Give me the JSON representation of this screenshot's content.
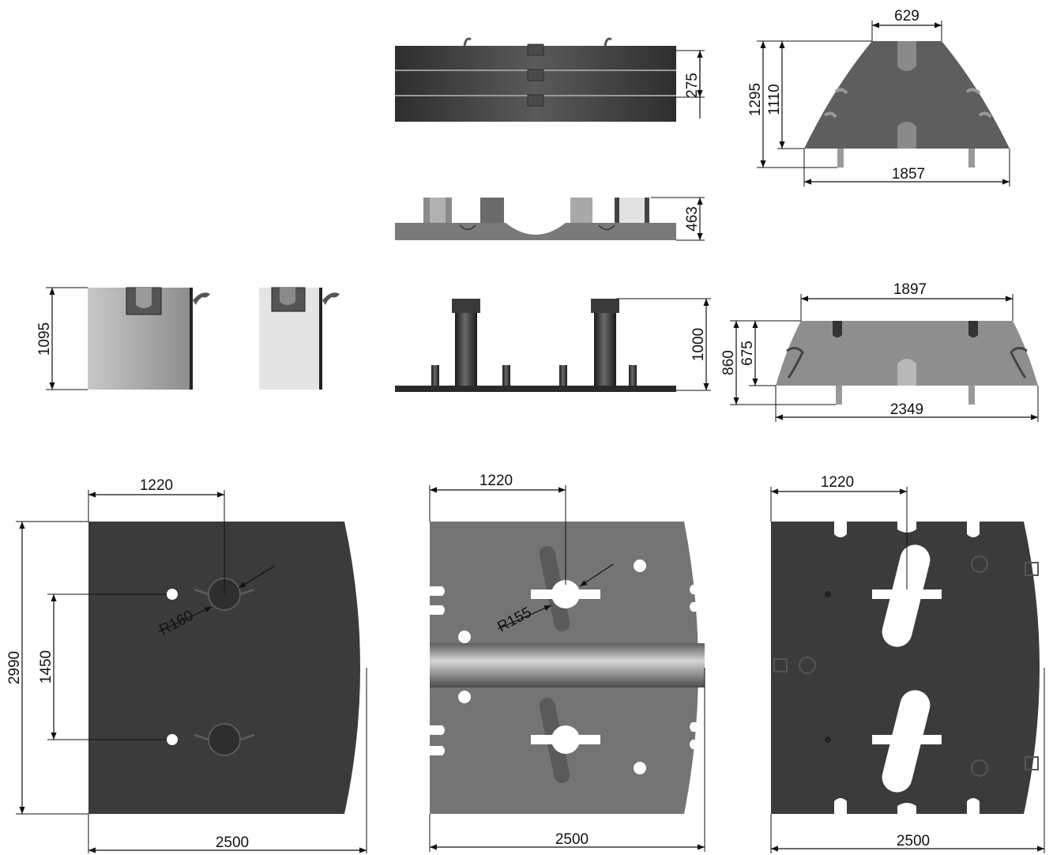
{
  "colors": {
    "background": "#ffffff",
    "dark_part": "#3d3d3d",
    "mid_part": "#6f6f6f",
    "light_part": "#bdbdbd",
    "lightest_part": "#e4e4e4",
    "line": "#111111"
  },
  "dimensions": {
    "stack_height": "275",
    "base_height": "463",
    "side_height": "1095",
    "column_height": "1000",
    "top_trap_top": "629",
    "top_trap_h1": "1295",
    "top_trap_h2": "1110",
    "top_trap_bottom": "1857",
    "lower_trap_top": "1897",
    "lower_trap_h1": "860",
    "lower_trap_h2": "675",
    "lower_trap_bottom": "2349",
    "plate1_offset": "1220",
    "plate1_height": "2990",
    "plate1_spacing": "1450",
    "plate1_radius": "R160",
    "plate1_width": "2500",
    "plate2_offset": "1220",
    "plate2_radius": "R155",
    "plate2_width": "2500",
    "plate3_offset": "1220",
    "plate3_width": "2500"
  }
}
